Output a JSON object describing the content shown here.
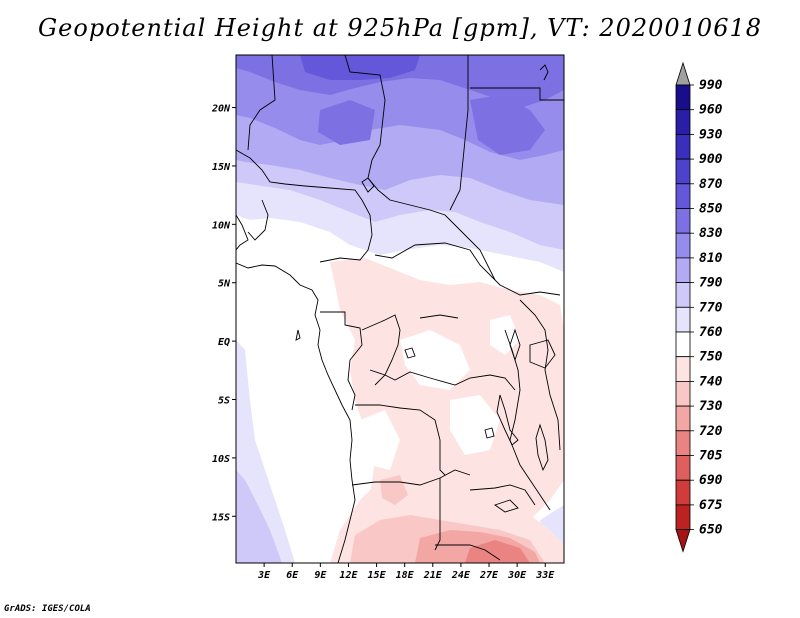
{
  "title": "Geopotential Height at 925hPa [gpm], VT: 2020010618",
  "footer": "GrADS: IGES/COLA",
  "map": {
    "lon_labels": [
      "3E",
      "6E",
      "9E",
      "12E",
      "15E",
      "18E",
      "21E",
      "24E",
      "27E",
      "30E",
      "33E"
    ],
    "lon_values": [
      3,
      6,
      9,
      12,
      15,
      18,
      21,
      24,
      27,
      30,
      33
    ],
    "lat_labels": [
      "20N",
      "15N",
      "10N",
      "5N",
      "EQ",
      "5S",
      "10S",
      "15S"
    ],
    "lat_values": [
      20,
      15,
      10,
      5,
      0,
      -5,
      -10,
      -15
    ],
    "lon_range": [
      0,
      35
    ],
    "lat_range": [
      -19,
      24.5
    ]
  },
  "colorbar": {
    "levels": [
      "990",
      "960",
      "930",
      "900",
      "870",
      "850",
      "830",
      "810",
      "790",
      "770",
      "760",
      "750",
      "740",
      "730",
      "720",
      "705",
      "690",
      "675",
      "650"
    ],
    "colors": [
      "#1a0d8c",
      "#2a1ea6",
      "#3a2fbd",
      "#4d42cc",
      "#6457d9",
      "#7c70e3",
      "#968cec",
      "#b2abf3",
      "#cec9f8",
      "#e6e4fc",
      "#ffffff",
      "#fde4e3",
      "#f9c7c5",
      "#f3a7a5",
      "#ea8482",
      "#de5f5d",
      "#cf3c3b",
      "#bc2222",
      "#a51414"
    ],
    "top_color": "#a0a0a0",
    "bottom_color": "#a51414"
  }
}
